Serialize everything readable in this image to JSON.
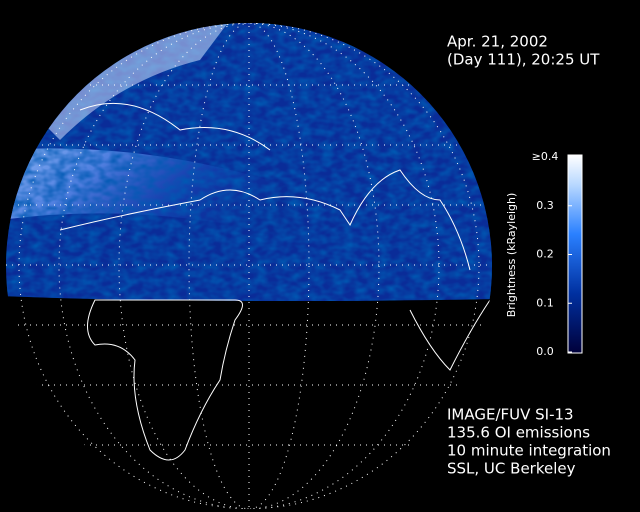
{
  "header": {
    "date": "Apr. 21, 2002",
    "time": "(Day 111), 20:25 UT"
  },
  "colorbar": {
    "label": "Brightness (kRayleigh)",
    "range": [
      0,
      0.4
    ],
    "ticks": [
      {
        "value": 0.4,
        "label": "≥0.4"
      },
      0.3,
      0.2,
      0.1,
      {
        "value": 0,
        "label": "0.0"
      }
    ]
  },
  "footer": {
    "lines": [
      "IMAGE/FUV SI-13",
      "135.6 OI emissions",
      "10 minute integration",
      "SSL, UC Berkeley"
    ]
  }
}
